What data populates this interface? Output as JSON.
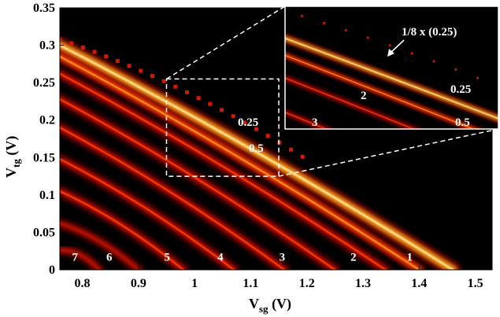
{
  "chart_data": {
    "type": "heatmap",
    "title": "",
    "xlabel": {
      "main": "V",
      "sub": "sg",
      "unit": " (V)"
    },
    "ylabel": {
      "main": "V",
      "sub": "tg",
      "unit": " (V)"
    },
    "xlim": [
      0.76,
      1.53
    ],
    "ylim": [
      0,
      0.35
    ],
    "x_ticks": [
      0.8,
      0.9,
      1.0,
      1.1,
      1.2,
      1.3,
      1.4,
      1.5
    ],
    "x_tick_labels": [
      "0.8",
      "0.9",
      "1",
      "1.1",
      "1.2",
      "1.3",
      "1.4",
      "1.5"
    ],
    "y_ticks": [
      0,
      0.05,
      0.1,
      0.15,
      0.2,
      0.25,
      0.3,
      0.35
    ],
    "y_tick_labels": [
      "0",
      "0.05",
      "0.1",
      "0.15",
      "0.2",
      "0.25",
      "0.3",
      "0.35"
    ],
    "colormap": [
      "#000000",
      "#5a0000",
      "#b01000",
      "#ff3b00",
      "#ff9a1e",
      "#ffe08a"
    ],
    "grid": false,
    "plateau_labels": [
      {
        "text": "7",
        "x": 0.787,
        "y": 0.012
      },
      {
        "text": "6",
        "x": 0.848,
        "y": 0.012
      },
      {
        "text": "5",
        "x": 0.951,
        "y": 0.012
      },
      {
        "text": "4",
        "x": 1.046,
        "y": 0.012
      },
      {
        "text": "3",
        "x": 1.156,
        "y": 0.012
      },
      {
        "text": "2",
        "x": 1.283,
        "y": 0.012
      },
      {
        "text": "1",
        "x": 1.383,
        "y": 0.012
      }
    ],
    "ridges": [
      {
        "x0": 0.76,
        "y0": 0.3,
        "x1": 1.46,
        "y1": 0.0,
        "intensity": 0.85,
        "width": 0.011
      },
      {
        "x0": 0.76,
        "y0": 0.285,
        "x1": 1.4,
        "y1": 0.0,
        "intensity": 0.55,
        "width": 0.008
      },
      {
        "x0": 0.76,
        "y0": 0.262,
        "x1": 1.34,
        "y1": 0.0,
        "intensity": 0.45,
        "width": 0.009
      },
      {
        "x0": 0.76,
        "y0": 0.228,
        "x1": 1.25,
        "y1": 0.0,
        "intensity": 0.42,
        "width": 0.009
      },
      {
        "x0": 0.76,
        "y0": 0.19,
        "x1": 1.16,
        "y1": 0.0,
        "intensity": 0.4,
        "width": 0.009
      },
      {
        "x0": 0.76,
        "y0": 0.148,
        "x1": 1.07,
        "y1": 0.0,
        "intensity": 0.38,
        "width": 0.009
      },
      {
        "x0": 0.76,
        "y0": 0.105,
        "x1": 0.98,
        "y1": 0.0,
        "intensity": 0.36,
        "width": 0.009
      },
      {
        "x0": 0.76,
        "y0": 0.062,
        "x1": 0.9,
        "y1": 0.0,
        "intensity": 0.34,
        "width": 0.008
      },
      {
        "x0": 0.76,
        "y0": 0.026,
        "x1": 0.83,
        "y1": 0.0,
        "intensity": 0.32,
        "width": 0.008
      }
    ],
    "zoom_region": {
      "x": [
        0.95,
        1.15
      ],
      "y": [
        0.125,
        0.255
      ]
    },
    "main_annotations": [
      {
        "text": "0.25",
        "x": 1.072,
        "y": 0.195
      },
      {
        "text": "0.5",
        "x": 1.078,
        "y": 0.155
      }
    ],
    "inset_annotations": {
      "arrow_label": "1/8 x (0.25)",
      "labels": [
        "2",
        "0.25",
        "3",
        "0.5"
      ]
    }
  }
}
